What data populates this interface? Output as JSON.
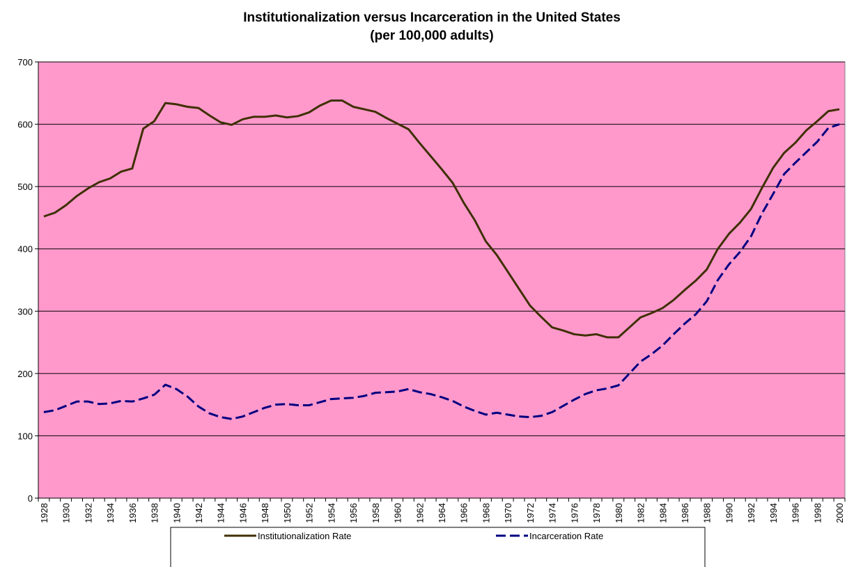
{
  "chart_data": {
    "type": "line",
    "title": "Institutionalization versus Incarceration in the United States",
    "subtitle": "(per 100,000 adults)",
    "categories": [
      "1928",
      null,
      "1930",
      null,
      "1932",
      null,
      "1934",
      null,
      "1936",
      null,
      "1938",
      null,
      "1940",
      null,
      "1942",
      null,
      "1944",
      null,
      "1946",
      null,
      "1948",
      null,
      "1950",
      null,
      "1952",
      null,
      "1954",
      null,
      "1956",
      null,
      "1958",
      null,
      "1960",
      null,
      "1962",
      null,
      "1964",
      null,
      "1966",
      null,
      "1968",
      null,
      "1970",
      null,
      "1972",
      null,
      "1974",
      null,
      "1976",
      null,
      "1978",
      null,
      "1980",
      null,
      "1982",
      null,
      "1984",
      null,
      "1986",
      null,
      "1988",
      null,
      "1990",
      null,
      "1992",
      null,
      "1994",
      null,
      "1996",
      null,
      "1998",
      null,
      "2000"
    ],
    "series": [
      {
        "name": "Institutionalization Rate",
        "color": "#3f3000",
        "dash": false,
        "values": [
          452,
          458,
          470,
          485,
          497,
          507,
          513,
          524,
          529,
          593,
          605,
          634,
          632,
          628,
          626,
          614,
          603,
          599,
          608,
          612,
          612,
          614,
          611,
          613,
          619,
          630,
          638,
          638,
          628,
          624,
          620,
          610,
          601,
          592,
          570,
          549,
          528,
          506,
          474,
          446,
          412,
          390,
          363,
          336,
          309,
          291,
          274,
          269,
          263,
          261,
          263,
          258,
          258,
          274,
          290,
          297,
          305,
          318,
          334,
          349,
          367,
          400,
          424,
          442,
          464,
          498,
          530,
          554,
          570,
          590,
          605,
          621,
          624
        ]
      },
      {
        "name": "Incarceration Rate",
        "color": "#000080",
        "dash": true,
        "values": [
          138,
          141,
          148,
          155,
          155,
          151,
          152,
          156,
          155,
          160,
          166,
          182,
          175,
          163,
          147,
          136,
          130,
          127,
          131,
          138,
          145,
          150,
          151,
          149,
          149,
          154,
          159,
          160,
          161,
          164,
          169,
          170,
          171,
          175,
          170,
          167,
          162,
          156,
          147,
          140,
          134,
          137,
          134,
          131,
          130,
          132,
          138,
          148,
          158,
          167,
          173,
          176,
          181,
          200,
          219,
          231,
          245,
          263,
          280,
          295,
          316,
          350,
          375,
          395,
          420,
          457,
          488,
          520,
          538,
          555,
          572,
          594,
          600
        ]
      }
    ],
    "ylim": [
      0,
      700
    ],
    "yticks": [
      0,
      100,
      200,
      300,
      400,
      500,
      600,
      700
    ],
    "grid": true,
    "background": "#ff99cc",
    "legend": "bottom"
  }
}
